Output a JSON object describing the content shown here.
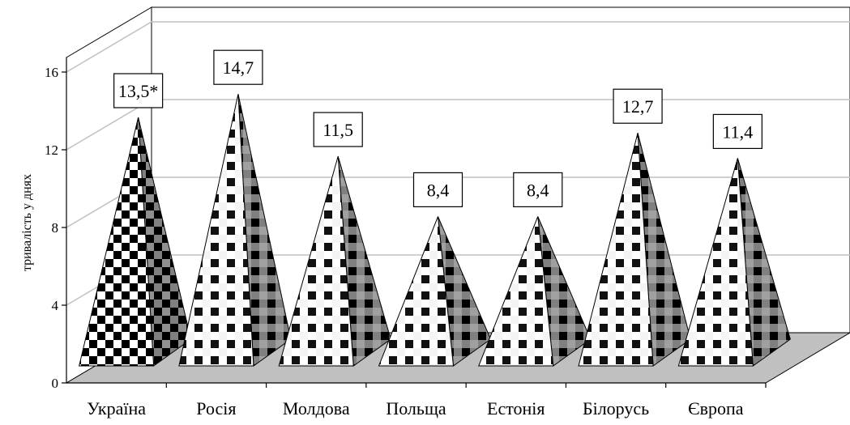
{
  "chart_data": {
    "type": "bar",
    "shape": "pyramid-3d",
    "title": "",
    "xlabel": "",
    "ylabel": "тривалість у днях",
    "ylim": [
      0,
      16
    ],
    "yticks": [
      "0",
      "4",
      "8",
      "12",
      "16"
    ],
    "grid": true,
    "legend": "none",
    "categories": [
      "Україна",
      "Росія",
      "Молдова",
      "Польща",
      "Естонія",
      "Білорусь",
      "Європа"
    ],
    "values": [
      13.5,
      14.7,
      11.5,
      8.4,
      8.4,
      12.7,
      11.4
    ],
    "data_labels": [
      "13,5*",
      "14,7",
      "11,5",
      "8,4",
      "8,4",
      "12,7",
      "11,4"
    ],
    "colors": {
      "floor": "#c0c0c0",
      "dark": "#000000",
      "light": "#ffffff",
      "side": "#808080",
      "grid": "#c0c0c0"
    }
  }
}
